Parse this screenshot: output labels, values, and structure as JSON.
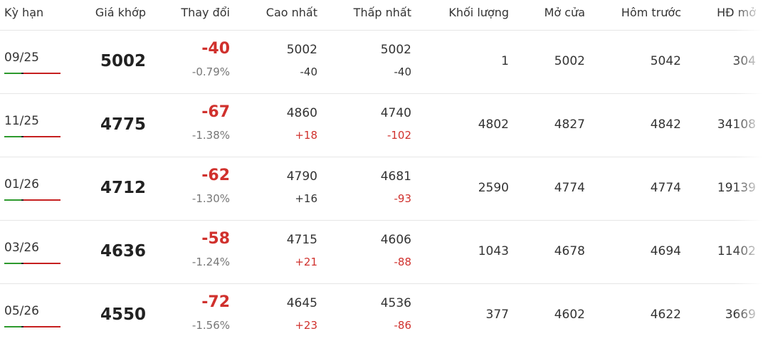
{
  "header": {
    "columns": [
      "Kỳ hạn",
      "Giá khớp",
      "Thay đổi",
      "Cao nhất",
      "Thấp nhất",
      "Khối lượng",
      "Mở cửa",
      "Hôm trước",
      "HĐ mở"
    ]
  },
  "colors": {
    "up_down": "#d0312d",
    "neutral": "#333333",
    "muted": "#777777"
  },
  "table": {
    "rows": [
      {
        "term": "09/25",
        "price": "5002",
        "change": "-40",
        "change_pct": "-0.79%",
        "high": "5002",
        "high_change": {
          "text": "-40",
          "color": "neutral"
        },
        "low": "5002",
        "low_change": {
          "text": "-40",
          "color": "neutral"
        },
        "volume": "1",
        "open": "5002",
        "prev": "5042",
        "oi": "304"
      },
      {
        "term": "11/25",
        "price": "4775",
        "change": "-67",
        "change_pct": "-1.38%",
        "high": "4860",
        "high_change": {
          "text": "+18",
          "color": "up_down"
        },
        "low": "4740",
        "low_change": {
          "text": "-102",
          "color": "up_down"
        },
        "volume": "4802",
        "open": "4827",
        "prev": "4842",
        "oi": "34108"
      },
      {
        "term": "01/26",
        "price": "4712",
        "change": "-62",
        "change_pct": "-1.30%",
        "high": "4790",
        "high_change": {
          "text": "+16",
          "color": "neutral"
        },
        "low": "4681",
        "low_change": {
          "text": "-93",
          "color": "up_down"
        },
        "volume": "2590",
        "open": "4774",
        "prev": "4774",
        "oi": "19139"
      },
      {
        "term": "03/26",
        "price": "4636",
        "change": "-58",
        "change_pct": "-1.24%",
        "high": "4715",
        "high_change": {
          "text": "+21",
          "color": "up_down"
        },
        "low": "4606",
        "low_change": {
          "text": "-88",
          "color": "up_down"
        },
        "volume": "1043",
        "open": "4678",
        "prev": "4694",
        "oi": "11402"
      },
      {
        "term": "05/26",
        "price": "4550",
        "change": "-72",
        "change_pct": "-1.56%",
        "high": "4645",
        "high_change": {
          "text": "+23",
          "color": "up_down"
        },
        "low": "4536",
        "low_change": {
          "text": "-86",
          "color": "up_down"
        },
        "volume": "377",
        "open": "4602",
        "prev": "4622",
        "oi": "3669"
      }
    ]
  }
}
